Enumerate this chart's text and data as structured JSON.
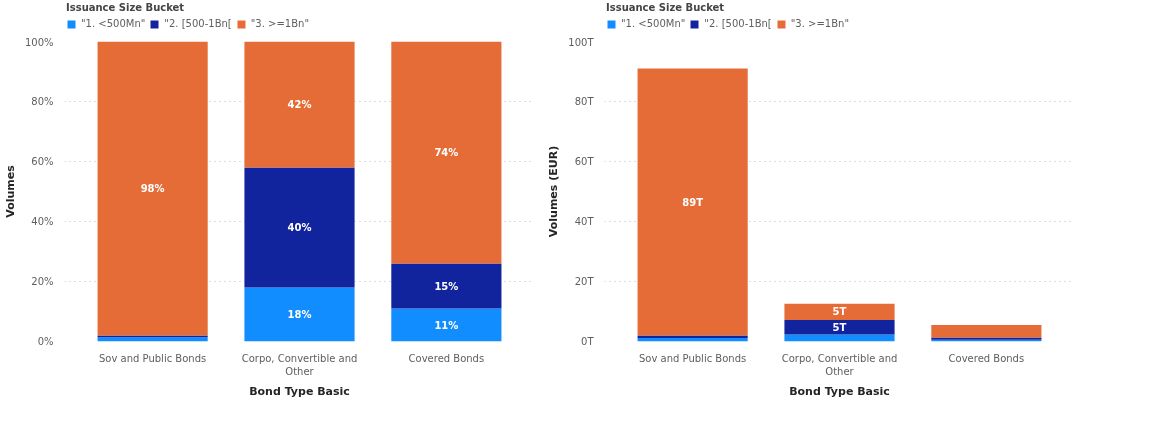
{
  "chart_data": [
    {
      "type": "bar",
      "stacked": true,
      "legend_title": "Issuance Size Bucket",
      "legend": "top left",
      "grid": "y",
      "xlabel": "Bond Type Basic",
      "ylabel": "Volumes",
      "categories": [
        "Sov and Public Bonds",
        "Corpo, Convertible and Other",
        "Covered Bonds"
      ],
      "ylim": [
        0,
        100
      ],
      "yticks": [
        {
          "value": 0,
          "label": "0%"
        },
        {
          "value": 20,
          "label": "20%"
        },
        {
          "value": 40,
          "label": "40%"
        },
        {
          "value": 60,
          "label": "60%"
        },
        {
          "value": 80,
          "label": "80%"
        },
        {
          "value": 100,
          "label": "100%"
        }
      ],
      "series": [
        {
          "name": "\"1. <500Mn\"",
          "color": "#118dff",
          "values": [
            1.4,
            18,
            11
          ],
          "value_labels": [
            null,
            "18%",
            "11%"
          ]
        },
        {
          "name": "\"2. [500-1Bn[",
          "color": "#12239e",
          "values": [
            0.6,
            40,
            15
          ],
          "value_labels": [
            null,
            "40%",
            "15%"
          ]
        },
        {
          "name": "\"3. >=1Bn\"",
          "color": "#e66c37",
          "values": [
            98,
            42,
            74
          ],
          "value_labels": [
            "98%",
            "42%",
            "74%"
          ]
        }
      ]
    },
    {
      "type": "bar",
      "stacked": true,
      "legend_title": "Issuance Size Bucket",
      "legend": "top left",
      "grid": "y",
      "xlabel": "Bond Type Basic",
      "ylabel": "Volumes (EUR)",
      "categories": [
        "Sov and Public Bonds",
        "Corpo, Convertible and Other",
        "Covered Bonds"
      ],
      "ylim": [
        0,
        100
      ],
      "yticks": [
        {
          "value": 0,
          "label": "0T"
        },
        {
          "value": 20,
          "label": "20T"
        },
        {
          "value": 40,
          "label": "40T"
        },
        {
          "value": 60,
          "label": "60T"
        },
        {
          "value": 80,
          "label": "80T"
        },
        {
          "value": 100,
          "label": "100T"
        }
      ],
      "series": [
        {
          "name": "\"1. <500Mn\"",
          "color": "#118dff",
          "values": [
            1.2,
            2.3,
            0.6
          ],
          "value_labels": [
            null,
            null,
            null
          ]
        },
        {
          "name": "\"2. [500-1Bn[",
          "color": "#12239e",
          "values": [
            0.8,
            4.9,
            0.7
          ],
          "value_labels": [
            null,
            "5T",
            null
          ]
        },
        {
          "name": "\"3. >=1Bn\"",
          "color": "#e66c37",
          "values": [
            89,
            5.4,
            4.2
          ],
          "value_labels": [
            "89T",
            "5T",
            null
          ]
        }
      ]
    }
  ]
}
